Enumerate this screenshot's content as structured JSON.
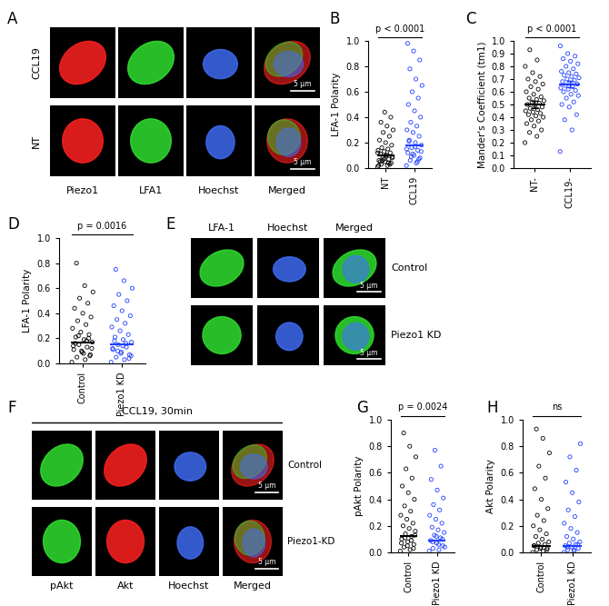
{
  "chart_data": [
    {
      "type": "scatter",
      "title": "B",
      "ylabel": "LFA-1 Polarity",
      "categories": [
        "NT",
        "CCL19"
      ],
      "values": [
        [
          0.01,
          0.02,
          0.03,
          0.04,
          0.05,
          0.06,
          0.07,
          0.08,
          0.09,
          0.1,
          0.11,
          0.12,
          0.13,
          0.14,
          0.15,
          0.16,
          0.18,
          0.2,
          0.22,
          0.25,
          0.28,
          0.3,
          0.33,
          0.36,
          0.4,
          0.44,
          0.02,
          0.04,
          0.06,
          0.08,
          0.1,
          0.05,
          0.03,
          0.07,
          0.12
        ],
        [
          0.02,
          0.04,
          0.06,
          0.08,
          0.1,
          0.12,
          0.14,
          0.16,
          0.18,
          0.2,
          0.22,
          0.25,
          0.28,
          0.3,
          0.33,
          0.36,
          0.4,
          0.45,
          0.5,
          0.55,
          0.6,
          0.65,
          0.7,
          0.78,
          0.85,
          0.92,
          0.98,
          0.05,
          0.09,
          0.13,
          0.17,
          0.21,
          0.07,
          0.11,
          0.15
        ]
      ],
      "means": [
        0.1,
        0.18
      ],
      "colors": [
        "#000000",
        "#1f3fff"
      ],
      "marker": "o",
      "ylim": [
        0,
        1.0
      ],
      "yticks": [
        {
          "value": 0,
          "label": "0.0"
        },
        {
          "value": 0.2,
          "label": "0.2"
        },
        {
          "value": 0.4,
          "label": "0.4"
        },
        {
          "value": 0.6,
          "label": "0.6"
        },
        {
          "value": 0.8,
          "label": "0.8"
        },
        {
          "value": 1.0,
          "label": "1.0"
        }
      ],
      "annotations": [
        "p < 0.0001"
      ]
    },
    {
      "type": "scatter",
      "title": "C",
      "ylabel": "Mander's Coefficient (tm1)",
      "categories": [
        "NT-",
        "CCL19-"
      ],
      "values": [
        [
          0.2,
          0.25,
          0.28,
          0.3,
          0.33,
          0.35,
          0.37,
          0.38,
          0.4,
          0.41,
          0.42,
          0.43,
          0.44,
          0.45,
          0.46,
          0.47,
          0.48,
          0.49,
          0.5,
          0.51,
          0.52,
          0.53,
          0.54,
          0.55,
          0.56,
          0.58,
          0.6,
          0.62,
          0.64,
          0.66,
          0.68,
          0.7,
          0.72,
          0.75,
          0.8,
          0.85,
          0.93
        ],
        [
          0.13,
          0.3,
          0.38,
          0.42,
          0.48,
          0.5,
          0.52,
          0.55,
          0.57,
          0.58,
          0.6,
          0.61,
          0.62,
          0.63,
          0.64,
          0.65,
          0.66,
          0.67,
          0.68,
          0.69,
          0.7,
          0.71,
          0.72,
          0.73,
          0.74,
          0.75,
          0.76,
          0.78,
          0.8,
          0.82,
          0.84,
          0.86,
          0.88,
          0.9,
          0.96
        ]
      ],
      "means": [
        0.5,
        0.66
      ],
      "errors": [
        0.03,
        0.025
      ],
      "colors": [
        "#000000",
        "#1f3fff"
      ],
      "marker": "o",
      "ylim": [
        0,
        1.0
      ],
      "yticks": [
        {
          "value": 0,
          "label": "0.0"
        },
        {
          "value": 0.1,
          "label": "0.1"
        },
        {
          "value": 0.2,
          "label": "0.2"
        },
        {
          "value": 0.3,
          "label": "0.3"
        },
        {
          "value": 0.4,
          "label": "0.4"
        },
        {
          "value": 0.5,
          "label": "0.5"
        },
        {
          "value": 0.6,
          "label": "0.6"
        },
        {
          "value": 0.7,
          "label": "0.7"
        },
        {
          "value": 0.8,
          "label": "0.8"
        },
        {
          "value": 0.9,
          "label": "0.9"
        },
        {
          "value": 1.0,
          "label": "1.0"
        }
      ],
      "annotations": [
        "p < 0.0001"
      ]
    },
    {
      "type": "scatter",
      "title": "D",
      "ylabel": "LFA-1 Polarity",
      "categories": [
        "Control",
        "Piezo1 KD"
      ],
      "values": [
        [
          0.01,
          0.03,
          0.05,
          0.07,
          0.09,
          0.11,
          0.13,
          0.15,
          0.17,
          0.19,
          0.21,
          0.23,
          0.25,
          0.28,
          0.31,
          0.34,
          0.37,
          0.4,
          0.44,
          0.48,
          0.52,
          0.57,
          0.62,
          0.8,
          0.06,
          0.1,
          0.14,
          0.18,
          0.22,
          0.12,
          0.08,
          0.16,
          0.2
        ],
        [
          0.01,
          0.03,
          0.05,
          0.07,
          0.09,
          0.11,
          0.13,
          0.15,
          0.17,
          0.19,
          0.21,
          0.23,
          0.26,
          0.29,
          0.32,
          0.35,
          0.38,
          0.42,
          0.46,
          0.5,
          0.55,
          0.6,
          0.66,
          0.75,
          0.04,
          0.08,
          0.12,
          0.16,
          0.1,
          0.06,
          0.14,
          0.18
        ]
      ],
      "means": [
        0.17,
        0.15
      ],
      "colors": [
        "#000000",
        "#1f3fff"
      ],
      "marker": "o",
      "ylim": [
        0,
        1.0
      ],
      "yticks": [
        {
          "value": 0,
          "label": "0.0"
        },
        {
          "value": 0.2,
          "label": "0.2"
        },
        {
          "value": 0.4,
          "label": "0.4"
        },
        {
          "value": 0.6,
          "label": "0.6"
        },
        {
          "value": 0.8,
          "label": "0.8"
        },
        {
          "value": 1.0,
          "label": "1.0"
        }
      ],
      "annotations": [
        "p = 0.0016"
      ]
    },
    {
      "type": "scatter",
      "title": "G",
      "ylabel": "pAkt Polarity",
      "categories": [
        "Control",
        "Piezo1 KD"
      ],
      "values": [
        [
          0.01,
          0.02,
          0.04,
          0.06,
          0.08,
          0.1,
          0.12,
          0.14,
          0.16,
          0.18,
          0.2,
          0.22,
          0.25,
          0.28,
          0.31,
          0.35,
          0.4,
          0.45,
          0.5,
          0.56,
          0.63,
          0.72,
          0.8,
          0.9,
          0.03,
          0.05,
          0.07,
          0.09,
          0.11,
          0.13
        ],
        [
          0.01,
          0.02,
          0.03,
          0.05,
          0.07,
          0.09,
          0.11,
          0.13,
          0.15,
          0.17,
          0.19,
          0.22,
          0.25,
          0.28,
          0.32,
          0.36,
          0.41,
          0.47,
          0.55,
          0.65,
          0.77,
          0.04,
          0.06,
          0.08,
          0.1,
          0.12
        ]
      ],
      "means": [
        0.12,
        0.09
      ],
      "colors": [
        "#000000",
        "#1f3fff"
      ],
      "marker": "o",
      "ylim": [
        0,
        1.0
      ],
      "yticks": [
        {
          "value": 0,
          "label": "0.0"
        },
        {
          "value": 0.2,
          "label": "0.2"
        },
        {
          "value": 0.4,
          "label": "0.4"
        },
        {
          "value": 0.6,
          "label": "0.6"
        },
        {
          "value": 0.8,
          "label": "0.8"
        },
        {
          "value": 1.0,
          "label": "1.0"
        }
      ],
      "annotations": [
        "p = 0.0024"
      ]
    },
    {
      "type": "scatter",
      "title": "H",
      "ylabel": "Akt Polarity",
      "categories": [
        "Control",
        "Piezo1 KD"
      ],
      "values": [
        [
          0.0,
          0.01,
          0.02,
          0.03,
          0.04,
          0.05,
          0.06,
          0.07,
          0.08,
          0.1,
          0.12,
          0.14,
          0.17,
          0.2,
          0.24,
          0.28,
          0.33,
          0.4,
          0.48,
          0.56,
          0.65,
          0.75,
          0.86,
          0.93,
          0.02,
          0.03,
          0.05
        ],
        [
          0.0,
          0.01,
          0.02,
          0.03,
          0.04,
          0.05,
          0.06,
          0.07,
          0.08,
          0.1,
          0.12,
          0.15,
          0.18,
          0.22,
          0.27,
          0.32,
          0.38,
          0.45,
          0.53,
          0.62,
          0.72,
          0.82,
          0.02,
          0.04,
          0.06
        ]
      ],
      "means": [
        0.05,
        0.05
      ],
      "colors": [
        "#000000",
        "#1f3fff"
      ],
      "marker": "o",
      "ylim": [
        0,
        1.0
      ],
      "yticks": [
        {
          "value": 0,
          "label": "0.0"
        },
        {
          "value": 0.2,
          "label": "0.2"
        },
        {
          "value": 0.4,
          "label": "0.4"
        },
        {
          "value": 0.6,
          "label": "0.6"
        },
        {
          "value": 0.8,
          "label": "0.8"
        },
        {
          "value": 1.0,
          "label": "1.0"
        }
      ],
      "annotations": [
        "ns"
      ]
    }
  ],
  "image_panels": [
    {
      "label": "A",
      "rows": [
        "CCL19",
        "NT"
      ],
      "columns": [
        "Piezo1",
        "LFA1",
        "Hoechst",
        "Merged"
      ],
      "scale_bar": "5 µm"
    },
    {
      "label": "E",
      "rows": [
        "Control",
        "Piezo1 KD"
      ],
      "columns": [
        "LFA-1",
        "Hoechst",
        "Merged"
      ],
      "scale_bar": "5 µm"
    },
    {
      "label": "F",
      "title": "CCL19, 30min",
      "rows": [
        "Control",
        "Piezo1-KD"
      ],
      "columns": [
        "pAkt",
        "Akt",
        "Hoechst",
        "Merged"
      ],
      "scale_bar": "5 µm"
    }
  ]
}
